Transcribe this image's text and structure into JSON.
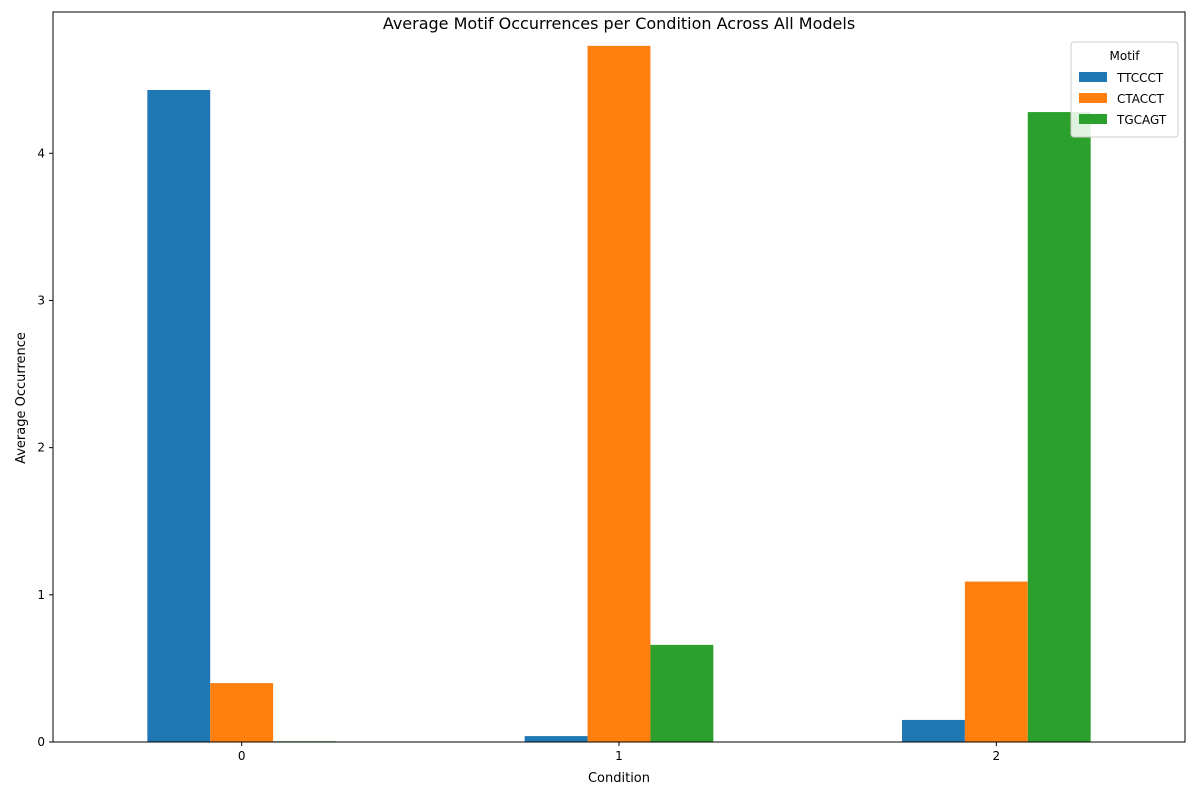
{
  "chart_data": {
    "type": "bar",
    "title": "Average Motif Occurrences per Condition Across All Models",
    "xlabel": "Condition",
    "ylabel": "Average Occurrence",
    "categories": [
      "0",
      "1",
      "2"
    ],
    "ylim": [
      0,
      4.96
    ],
    "yticks": [
      0,
      1,
      2,
      3,
      4
    ],
    "grid": false,
    "legend": {
      "title": "Motif",
      "position": "top-right"
    },
    "series": [
      {
        "name": "TTCCCT",
        "color": "#1f77b4",
        "values": [
          4.43,
          0.04,
          0.15
        ]
      },
      {
        "name": "CTACCT",
        "color": "#ff7f0e",
        "values": [
          0.4,
          4.73,
          1.09
        ]
      },
      {
        "name": "TGCAGT",
        "color": "#2ca02c",
        "values": [
          0.005,
          0.66,
          4.28
        ]
      }
    ]
  }
}
